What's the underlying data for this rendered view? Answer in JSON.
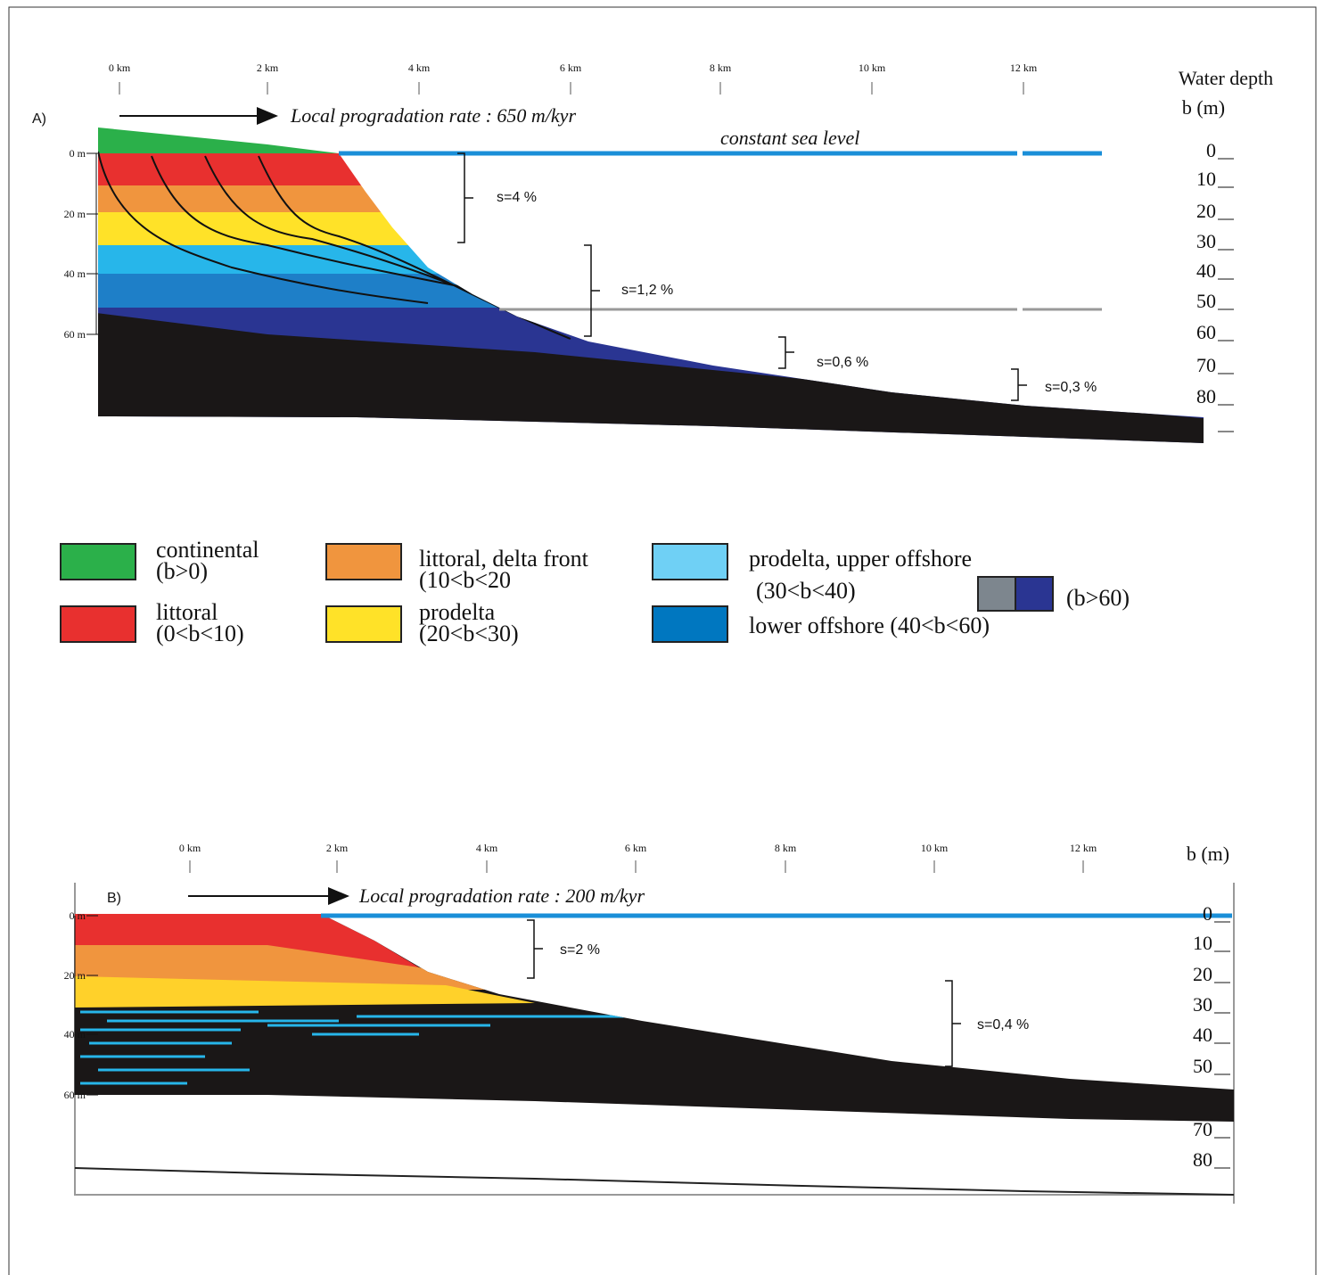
{
  "panel_a": {
    "label": "A)",
    "depth_title": [
      "Water depth",
      "b (m)"
    ],
    "km_labels": [
      "0 km",
      "2 km",
      "4 km",
      "6 km",
      "8 km",
      "10 km",
      "12 km"
    ],
    "left_depths": [
      "0 m",
      "20 m",
      "40 m",
      "60 m"
    ],
    "right_depths": [
      "0",
      "10",
      "20",
      "30",
      "40",
      "50",
      "60",
      "70",
      "80"
    ],
    "arrow_text": "Local progradation rate : 650  m/kyr",
    "sea_level": "constant sea level",
    "slopes": [
      "s=4 %",
      "s=1,2 %",
      "s=0,6 %",
      "s=0,3 %"
    ]
  },
  "legend": [
    [
      "continental",
      "(b>0)"
    ],
    [
      "littoral",
      "(0<b<10)"
    ],
    [
      "littoral, delta front",
      " (10<b<20"
    ],
    [
      "prodelta",
      "(20<b<30)"
    ],
    [
      "prodelta, upper offshore",
      "(30<b<40)"
    ],
    [
      "lower offshore (40<b<60)"
    ]
  ],
  "legend_extra": "(b>60)",
  "panel_b": {
    "label": "B)",
    "depth_title": "b (m)",
    "km_labels": [
      "0 km",
      "2 km",
      "4 km",
      "6 km",
      "8 km",
      "10 km",
      "12 km"
    ],
    "left_depths": [
      "0 m",
      "20 m",
      "40 m",
      "60 m"
    ],
    "right_depths": [
      "0",
      "10",
      "20",
      "30",
      "40",
      "50",
      "70",
      "80"
    ],
    "arrow_text": "Local progradation rate : 200 m/kyr",
    "slopes": [
      "s=2 %",
      "s=0,4 %"
    ]
  }
}
